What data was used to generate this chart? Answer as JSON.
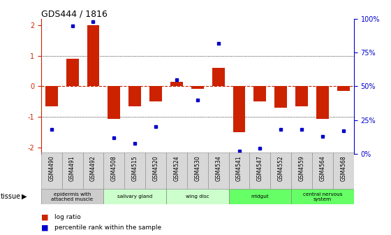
{
  "title": "GDS444 / 1816",
  "samples": [
    "GSM4490",
    "GSM4491",
    "GSM4492",
    "GSM4508",
    "GSM4515",
    "GSM4520",
    "GSM4524",
    "GSM4530",
    "GSM4534",
    "GSM4541",
    "GSM4547",
    "GSM4552",
    "GSM4559",
    "GSM4564",
    "GSM4568"
  ],
  "log_ratio": [
    -0.65,
    0.9,
    2.0,
    -1.05,
    -0.65,
    -0.5,
    0.15,
    -0.08,
    0.6,
    -1.5,
    -0.5,
    -0.7,
    -0.65,
    -1.05,
    -0.15
  ],
  "percentile": [
    18,
    95,
    98,
    12,
    8,
    20,
    55,
    40,
    82,
    2,
    4,
    18,
    18,
    13,
    17
  ],
  "tissue_groups": [
    {
      "label": "epidermis with\nattached muscle",
      "start": 0,
      "end": 2,
      "color": "#cccccc"
    },
    {
      "label": "salivary gland",
      "start": 3,
      "end": 5,
      "color": "#ccffcc"
    },
    {
      "label": "wing disc",
      "start": 6,
      "end": 8,
      "color": "#ccffcc"
    },
    {
      "label": "midgut",
      "start": 9,
      "end": 11,
      "color": "#66ff66"
    },
    {
      "label": "central nervous\nsystem",
      "start": 12,
      "end": 14,
      "color": "#66ff66"
    }
  ],
  "ylim": [
    -2.2,
    2.2
  ],
  "y_ticks_left": [
    -2,
    -1,
    0,
    1,
    2
  ],
  "y_ticks_right": [
    0,
    25,
    50,
    75,
    100
  ],
  "bar_color": "#cc2200",
  "dot_color": "#0000cc",
  "zero_line_color": "#cc2200",
  "grid_color": "#000000",
  "bg_color": "#ffffff"
}
